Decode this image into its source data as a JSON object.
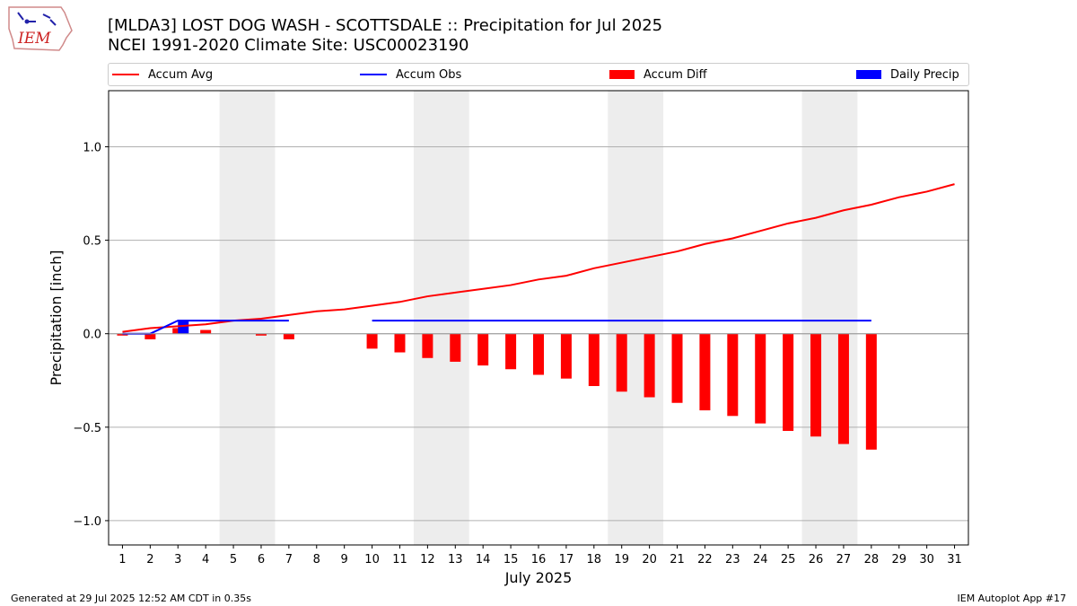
{
  "header": {
    "logo_text": "IEM",
    "title_line1": "[MLDA3] LOST DOG WASH - SCOTTSDALE :: Precipitation for Jul 2025",
    "title_line2": "NCEI 1991-2020 Climate Site: USC00023190"
  },
  "legend": [
    {
      "label": "Accum Avg",
      "kind": "line",
      "color": "#ff0000"
    },
    {
      "label": "Accum Obs",
      "kind": "line",
      "color": "#0000ff"
    },
    {
      "label": "Accum Diff",
      "kind": "box",
      "color": "#ff0000"
    },
    {
      "label": "Daily Precip",
      "kind": "box",
      "color": "#0000ff"
    }
  ],
  "footer": {
    "generated": "Generated at 29 Jul 2025 12:52 AM CDT in 0.35s",
    "app": "IEM Autoplot App #17"
  },
  "colors": {
    "avg": "#ff0000",
    "obs": "#0000ff",
    "diff": "#ff0000",
    "daily": "#0000ff",
    "weekend": "#ededed",
    "grid": "#b0b0b0"
  },
  "chart_data": {
    "type": "bar",
    "title": "[MLDA3] LOST DOG WASH - SCOTTSDALE :: Precipitation for Jul 2025",
    "xlabel": "July 2025",
    "ylabel": "Precipitation [inch]",
    "ylim": [
      -1.13,
      1.3
    ],
    "xlim": [
      0.5,
      31.5
    ],
    "yticks": [
      -1.0,
      -0.5,
      0.0,
      0.5,
      1.0
    ],
    "ytick_labels": [
      "−1.0",
      "−0.5",
      "0.0",
      "0.5",
      "1.0"
    ],
    "days": [
      1,
      2,
      3,
      4,
      5,
      6,
      7,
      8,
      9,
      10,
      11,
      12,
      13,
      14,
      15,
      16,
      17,
      18,
      19,
      20,
      21,
      22,
      23,
      24,
      25,
      26,
      27,
      28,
      29,
      30,
      31
    ],
    "weekend_spans": [
      [
        4.5,
        6.5
      ],
      [
        11.5,
        13.5
      ],
      [
        18.5,
        20.5
      ],
      [
        25.5,
        27.5
      ]
    ],
    "series": [
      {
        "name": "Accum Avg",
        "type": "line",
        "values": [
          0.01,
          0.03,
          0.04,
          0.05,
          0.07,
          0.08,
          0.1,
          0.12,
          0.13,
          0.15,
          0.17,
          0.2,
          0.22,
          0.24,
          0.26,
          0.29,
          0.31,
          0.35,
          0.38,
          0.41,
          0.44,
          0.48,
          0.51,
          0.55,
          0.59,
          0.62,
          0.66,
          0.69,
          0.73,
          0.76,
          0.8
        ]
      },
      {
        "name": "Accum Obs",
        "type": "line",
        "segments": [
          {
            "x": [
              1,
              2,
              3,
              4,
              5,
              6,
              7
            ],
            "values": [
              0.0,
              0.0,
              0.07,
              0.07,
              0.07,
              0.07,
              0.07
            ]
          },
          {
            "x": [
              10,
              11,
              12,
              13,
              14,
              15,
              16,
              17,
              18,
              19,
              20,
              21,
              22,
              23,
              24,
              25,
              26,
              27,
              28
            ],
            "values": [
              0.07,
              0.07,
              0.07,
              0.07,
              0.07,
              0.07,
              0.07,
              0.07,
              0.07,
              0.07,
              0.07,
              0.07,
              0.07,
              0.07,
              0.07,
              0.07,
              0.07,
              0.07,
              0.07
            ]
          }
        ]
      },
      {
        "name": "Accum Diff",
        "type": "bar",
        "x": [
          1,
          2,
          3,
          4,
          6,
          7,
          10,
          11,
          12,
          13,
          14,
          15,
          16,
          17,
          18,
          19,
          20,
          21,
          22,
          23,
          24,
          25,
          26,
          27,
          28
        ],
        "values": [
          -0.01,
          -0.03,
          0.03,
          0.02,
          -0.01,
          -0.03,
          -0.08,
          -0.1,
          -0.13,
          -0.15,
          -0.17,
          -0.19,
          -0.22,
          -0.24,
          -0.28,
          -0.31,
          -0.34,
          -0.37,
          -0.41,
          -0.44,
          -0.48,
          -0.52,
          -0.55,
          -0.59,
          -0.62
        ]
      },
      {
        "name": "Daily Precip",
        "type": "bar",
        "x": [
          3
        ],
        "values": [
          0.07
        ]
      }
    ]
  }
}
